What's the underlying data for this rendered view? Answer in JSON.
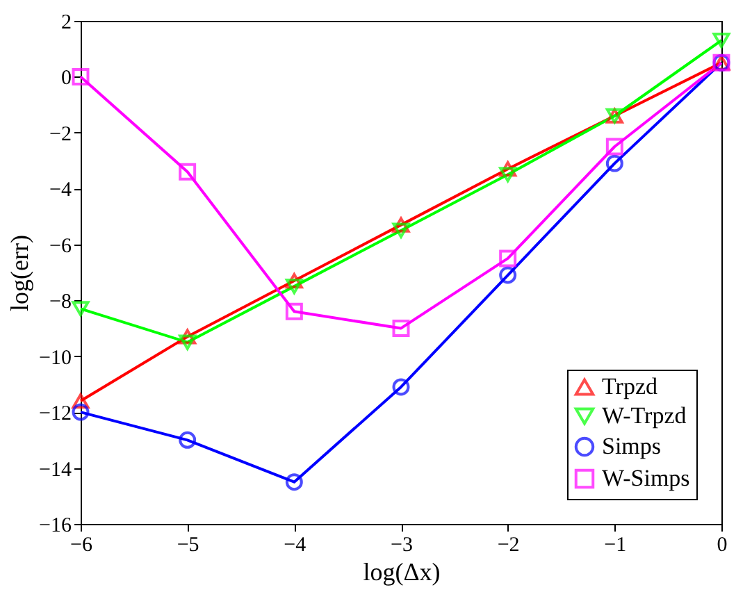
{
  "chart_data": {
    "type": "line",
    "xlabel": "log(Δx)",
    "ylabel": "log(err)",
    "x": [
      -6,
      -5,
      -4,
      -3,
      -2,
      -1,
      0
    ],
    "xlim": [
      -6,
      0
    ],
    "xticks": [
      -6,
      -5,
      -4,
      -3,
      -2,
      -1,
      0
    ],
    "ylim": [
      -16,
      2
    ],
    "yticks": [
      -16,
      -14,
      -12,
      -10,
      -8,
      -6,
      -4,
      -2,
      0,
      2
    ],
    "grid": false,
    "legend": "bottom right",
    "line_style": "solid",
    "series": [
      {
        "name": "Trpzd",
        "color": "#ff0000",
        "marker": "triangle",
        "values": [
          -11.6,
          -9.3,
          -7.3,
          -5.3,
          -3.3,
          -1.4,
          0.5
        ]
      },
      {
        "name": "W-Trpzd",
        "color": "#00ff00",
        "marker": "triangle-down",
        "values": [
          -8.3,
          -9.5,
          -7.5,
          -5.5,
          -3.5,
          -1.4,
          1.3
        ]
      },
      {
        "name": "Simps",
        "color": "#0000ff",
        "marker": "circle",
        "values": [
          -12,
          -13,
          -14.5,
          -11.1,
          -7.1,
          -3.1,
          0.5
        ]
      },
      {
        "name": "W-Simps",
        "color": "#ff00ff",
        "marker": "square",
        "values": [
          0,
          -3.4,
          -8.4,
          -9,
          -6.5,
          -2.5,
          0.5
        ]
      }
    ]
  }
}
